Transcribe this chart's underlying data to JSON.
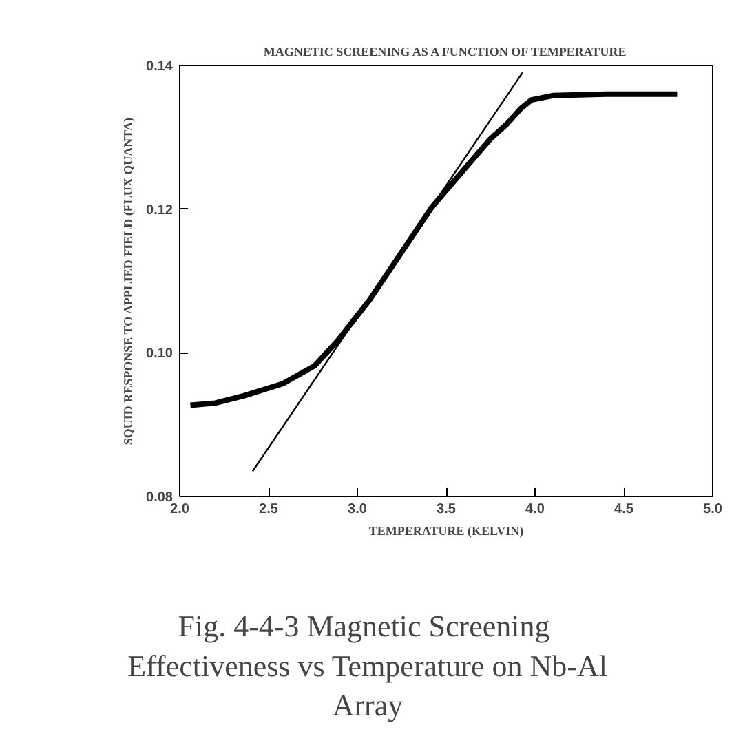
{
  "chart_data": {
    "type": "line",
    "title": "MAGNETIC SCREENING AS A FUNCTION OF TEMPERATURE",
    "xlabel": "TEMPERATURE (KELVIN)",
    "ylabel": "SQUID RESPONSE TO APPLIED FIELD (FLUX QUANTA)",
    "xlim": [
      2.0,
      5.0
    ],
    "ylim": [
      0.08,
      0.14
    ],
    "xticks": [
      {
        "value": 2.0,
        "label": "2.0"
      },
      {
        "value": 2.5,
        "label": "2.5"
      },
      {
        "value": 3.0,
        "label": "3.0"
      },
      {
        "value": 3.5,
        "label": "3.5"
      },
      {
        "value": 4.0,
        "label": "4.0"
      },
      {
        "value": 4.5,
        "label": "4.5"
      },
      {
        "value": 5.0,
        "label": "5.0"
      }
    ],
    "yticks": [
      {
        "value": 0.08,
        "label": "0.08"
      },
      {
        "value": 0.1,
        "label": "0.10"
      },
      {
        "value": 0.12,
        "label": "0.12"
      },
      {
        "value": 0.14,
        "label": "0.14"
      }
    ],
    "grid": false,
    "marker": "none",
    "line_style": "solid",
    "series": [
      {
        "color": "#000000",
        "x": [
          2.06,
          2.2,
          2.36,
          2.58,
          2.76,
          2.89,
          3.07,
          3.29,
          3.42,
          3.6,
          3.75,
          3.84,
          3.92,
          3.98,
          4.1,
          4.4,
          4.8
        ],
        "values": [
          0.0927,
          0.093,
          0.094,
          0.0957,
          0.0982,
          0.1017,
          0.1074,
          0.1155,
          0.1203,
          0.1255,
          0.1298,
          0.1318,
          0.134,
          0.1352,
          0.1358,
          0.136,
          0.136
        ]
      },
      {
        "color": "#000000",
        "x": [
          2.41,
          3.93
        ],
        "values": [
          0.0835,
          0.139
        ]
      }
    ],
    "annotations": [
      "Fig. 4-4-3  Magnetic Screening\nEffectiveness vs Temperature on Nb-Al\nArray"
    ]
  }
}
